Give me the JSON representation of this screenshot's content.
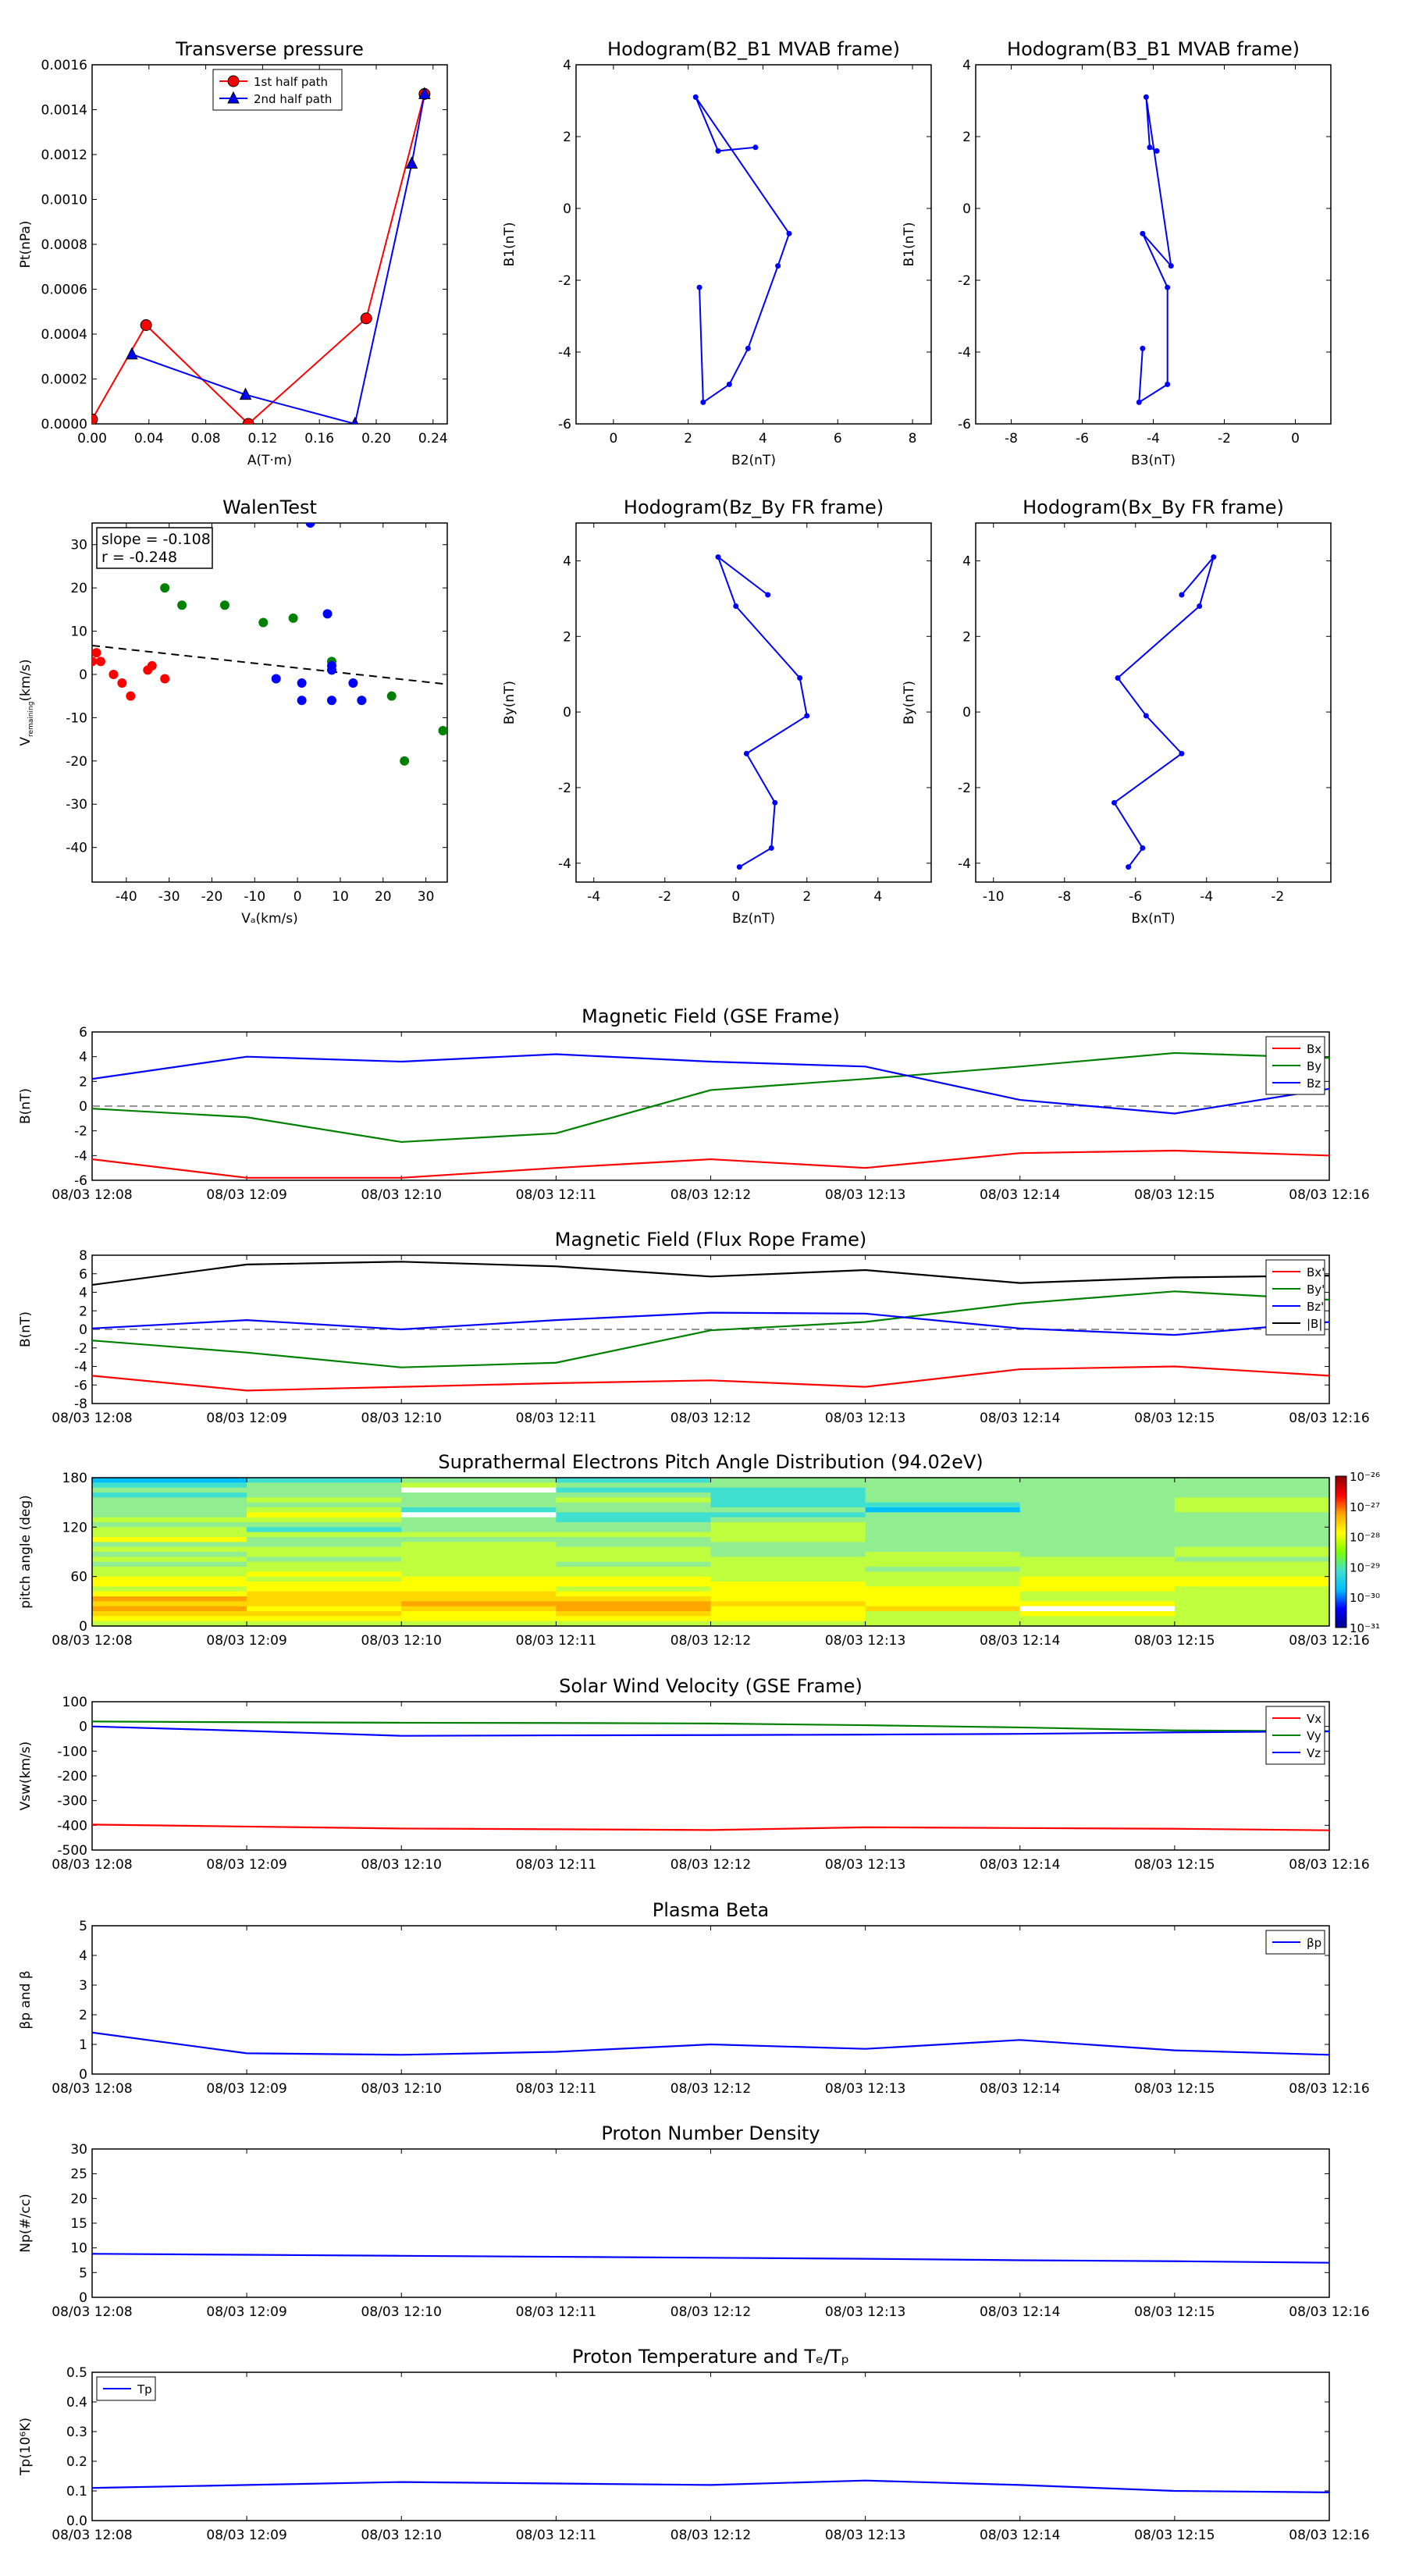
{
  "x_time_ticks": [
    "08/03 12:08",
    "08/03 12:09",
    "08/03 12:10",
    "08/03 12:11",
    "08/03 12:12",
    "08/03 12:13",
    "08/03 12:14",
    "08/03 12:15",
    "08/03 12:16"
  ],
  "colors": {
    "red": "#ff0000",
    "green": "#008000",
    "blue": "#0000ff",
    "black": "#000000",
    "dash": "#555555"
  },
  "chart_data": [
    {
      "type": "line",
      "title": "Transverse pressure",
      "xlabel": "A(T·m)",
      "ylabel": "Pt(nPa)",
      "xlim": [
        0,
        0.25
      ],
      "ylim": [
        0,
        0.0016
      ],
      "xticks": [
        0,
        0.04,
        0.08,
        0.12,
        0.16,
        0.2,
        0.24
      ],
      "xtick_labels": [
        "0.00",
        "0.04",
        "0.08",
        "0.12",
        "0.16",
        "0.20",
        "0.24"
      ],
      "yticks": [
        0,
        0.0002,
        0.0004,
        0.0006,
        0.0008,
        0.001,
        0.0012,
        0.0014,
        0.0016
      ],
      "ytick_labels": [
        "0.0000",
        "0.0002",
        "0.0004",
        "0.0006",
        "0.0008",
        "0.0010",
        "0.0012",
        "0.0014",
        "0.0016"
      ],
      "legend": "upper center",
      "series": [
        {
          "name": "1st half path",
          "color": "#ff0000",
          "marker": "circle",
          "x": [
            0.0,
            0.038,
            0.11,
            0.193,
            0.234
          ],
          "y": [
            2e-05,
            0.00044,
            0.0,
            0.00047,
            0.00147
          ]
        },
        {
          "name": "2nd half path",
          "color": "#0000ff",
          "marker": "triangle",
          "x": [
            0.234,
            0.225,
            0.185,
            0.108,
            0.028
          ],
          "y": [
            0.00147,
            0.00116,
            0.0,
            0.00013,
            0.00031
          ]
        }
      ]
    },
    {
      "type": "line",
      "title": "Hodogram(B2_B1 MVAB frame)",
      "xlabel": "B2(nT)",
      "ylabel": "B1(nT)",
      "xlim": [
        -1,
        8.5
      ],
      "ylim": [
        -6,
        4
      ],
      "xticks": [
        0,
        2,
        4,
        6,
        8
      ],
      "yticks": [
        -6,
        -4,
        -2,
        0,
        2,
        4
      ],
      "series": [
        {
          "color": "#0000ff",
          "marker": "dot",
          "x": [
            3.8,
            2.8,
            2.2,
            4.7,
            4.4,
            3.6,
            3.1,
            2.4,
            2.3
          ],
          "y": [
            1.7,
            1.6,
            3.1,
            -0.7,
            -1.6,
            -3.9,
            -4.9,
            -5.4,
            -2.2
          ]
        }
      ]
    },
    {
      "type": "line",
      "title": "Hodogram(B3_B1 MVAB frame)",
      "xlabel": "B3(nT)",
      "ylabel": "B1(nT)",
      "xlim": [
        -9,
        1
      ],
      "ylim": [
        -6,
        4
      ],
      "xticks": [
        -8,
        -6,
        -4,
        -2,
        0
      ],
      "yticks": [
        -6,
        -4,
        -2,
        0,
        2,
        4
      ],
      "series": [
        {
          "color": "#0000ff",
          "marker": "dot",
          "x": [
            -3.9,
            -4.1,
            -4.2,
            -3.5,
            -4.3,
            -3.6,
            -3.6,
            -4.4,
            -4.3
          ],
          "y": [
            1.6,
            1.7,
            3.1,
            -1.6,
            -0.7,
            -2.2,
            -4.9,
            -5.4,
            -3.9
          ]
        }
      ]
    },
    {
      "type": "scatter",
      "title": "WalenTest",
      "xlabel": "Vₐ(km/s)",
      "ylabel": "V",
      "ylabel_sub": "remaining",
      "ylabel_tail": "(km/s)",
      "xlim": [
        -48,
        35
      ],
      "ylim": [
        -48,
        35
      ],
      "xticks": [
        -40,
        -30,
        -20,
        -10,
        0,
        10,
        20,
        30
      ],
      "yticks": [
        -40,
        -30,
        -20,
        -10,
        0,
        10,
        20,
        30
      ],
      "annotation": [
        "slope = -0.108",
        "r = -0.248"
      ],
      "fit_line": {
        "slope": -0.108,
        "intercept": 1.5
      },
      "series": [
        {
          "color": "#ff0000",
          "x": [
            -48,
            -47,
            -46,
            -43,
            -41,
            -39,
            -35,
            -34,
            -31
          ],
          "y": [
            3,
            5,
            3,
            0,
            -2,
            -5,
            1,
            2,
            -1
          ]
        },
        {
          "color": "#008000",
          "x": [
            -31,
            -27,
            -17,
            -8,
            -1,
            8,
            22,
            25,
            34
          ],
          "y": [
            20,
            16,
            16,
            12,
            13,
            3,
            -5,
            -20,
            -13
          ]
        },
        {
          "color": "#0000ff",
          "x": [
            -5,
            1,
            1,
            7,
            8,
            8,
            8,
            13,
            15,
            3
          ],
          "y": [
            -1,
            -2,
            -6,
            14,
            2,
            1,
            -6,
            -2,
            -6,
            35
          ]
        }
      ]
    },
    {
      "type": "line",
      "title": "Hodogram(Bz_By FR frame)",
      "xlabel": "Bz(nT)",
      "ylabel": "By(nT)",
      "xlim": [
        -4.5,
        5.5
      ],
      "ylim": [
        -4.5,
        5
      ],
      "xticks": [
        -4,
        -2,
        0,
        2,
        4
      ],
      "yticks": [
        -4,
        -2,
        0,
        2,
        4
      ],
      "series": [
        {
          "color": "#0000ff",
          "marker": "dot",
          "x": [
            0.9,
            -0.5,
            0.0,
            1.8,
            2.0,
            0.3,
            1.1,
            1.0,
            0.1
          ],
          "y": [
            3.1,
            4.1,
            2.8,
            0.9,
            -0.1,
            -1.1,
            -2.4,
            -3.6,
            -4.1
          ]
        }
      ]
    },
    {
      "type": "line",
      "title": "Hodogram(Bx_By FR frame)",
      "xlabel": "Bx(nT)",
      "ylabel": "By(nT)",
      "xlim": [
        -10.5,
        -0.5
      ],
      "ylim": [
        -4.5,
        5
      ],
      "xticks": [
        -10,
        -8,
        -6,
        -4,
        -2
      ],
      "yticks": [
        -4,
        -2,
        0,
        2,
        4
      ],
      "series": [
        {
          "color": "#0000ff",
          "marker": "dot",
          "x": [
            -4.7,
            -3.8,
            -4.2,
            -6.5,
            -5.7,
            -4.7,
            -6.6,
            -5.8,
            -6.2
          ],
          "y": [
            3.1,
            4.1,
            2.8,
            0.9,
            -0.1,
            -1.1,
            -2.4,
            -3.6,
            -4.1
          ]
        }
      ]
    },
    {
      "type": "line",
      "title": "Magnetic Field (GSE Frame)",
      "ylabel": "B(nT)",
      "ylim": [
        -6,
        6
      ],
      "yticks": [
        -6,
        -4,
        -2,
        0,
        2,
        4,
        6
      ],
      "zero_line": true,
      "legend": "upper right",
      "series": [
        {
          "name": "Bx",
          "color": "#ff0000",
          "values": [
            -4.3,
            -5.8,
            -5.8,
            -5.0,
            -4.3,
            -5.0,
            -3.8,
            -3.6,
            -4.0
          ]
        },
        {
          "name": "By",
          "color": "#008000",
          "values": [
            -0.2,
            -0.9,
            -2.9,
            -2.2,
            1.3,
            2.2,
            3.2,
            4.3,
            3.9
          ]
        },
        {
          "name": "Bz",
          "color": "#0000ff",
          "values": [
            2.2,
            4.0,
            3.6,
            4.2,
            3.6,
            3.2,
            0.5,
            -0.6,
            1.4
          ]
        }
      ]
    },
    {
      "type": "line",
      "title": "Magnetic Field (Flux Rope Frame)",
      "ylabel": "B(nT)",
      "ylim": [
        -8,
        8
      ],
      "yticks": [
        -8,
        -6,
        -4,
        -2,
        0,
        2,
        4,
        6,
        8
      ],
      "zero_line": true,
      "legend": "upper right",
      "series": [
        {
          "name": "Bx'",
          "color": "#ff0000",
          "values": [
            -5.0,
            -6.6,
            -6.2,
            -5.8,
            -5.5,
            -6.2,
            -4.3,
            -4.0,
            -5.0
          ]
        },
        {
          "name": "By'",
          "color": "#008000",
          "values": [
            -1.2,
            -2.5,
            -4.1,
            -3.6,
            -0.1,
            0.8,
            2.8,
            4.1,
            3.2
          ]
        },
        {
          "name": "Bz'",
          "color": "#0000ff",
          "values": [
            0.1,
            1.0,
            0.0,
            1.0,
            1.8,
            1.7,
            0.1,
            -0.6,
            0.8
          ]
        },
        {
          "name": "|B|",
          "color": "#000000",
          "values": [
            4.8,
            7.0,
            7.3,
            6.8,
            5.7,
            6.4,
            5.0,
            5.6,
            5.8
          ]
        }
      ]
    },
    {
      "type": "heatmap",
      "title": "Suprathermal Electrons Pitch Angle Distribution (94.02eV)",
      "ylabel": "pitch angle (deg)",
      "ylim": [
        0,
        180
      ],
      "yticks": [
        0,
        60,
        120,
        180
      ],
      "colorbar_ticks": [
        "10⁻²⁶",
        "10⁻²⁷",
        "10⁻²⁸",
        "10⁻²⁹",
        "10⁻³⁰",
        "10⁻³¹"
      ],
      "columns": 8,
      "rows_per_column": 30,
      "levels_top_to_bottom": [
        [
          2,
          3,
          4,
          3,
          4,
          4,
          4,
          4,
          5,
          4,
          5,
          5,
          6,
          4,
          5,
          4,
          5,
          4,
          5,
          5,
          6,
          6,
          5,
          6,
          8,
          7,
          8,
          7,
          6,
          5
        ],
        [
          3,
          4,
          4,
          4,
          5,
          4,
          5,
          6,
          5,
          4,
          3,
          5,
          4,
          4,
          5,
          5,
          4,
          5,
          5,
          6,
          5,
          6,
          6,
          7,
          7,
          7,
          6,
          7,
          6,
          5
        ],
        [
          4,
          5,
          0,
          4,
          4,
          4,
          3,
          0,
          4,
          4,
          4,
          5,
          4,
          5,
          5,
          5,
          5,
          5,
          5,
          5,
          6,
          6,
          6,
          7,
          7,
          8,
          7,
          6,
          6,
          5
        ],
        [
          3,
          4,
          3,
          4,
          5,
          4,
          4,
          3,
          3,
          4,
          4,
          5,
          4,
          4,
          5,
          5,
          5,
          4,
          5,
          5,
          6,
          6,
          5,
          6,
          7,
          8,
          8,
          7,
          6,
          5
        ],
        [
          4,
          4,
          3,
          3,
          3,
          3,
          4,
          3,
          4,
          5,
          5,
          5,
          5,
          4,
          4,
          4,
          5,
          5,
          5,
          5,
          5,
          6,
          6,
          6,
          6,
          7,
          6,
          6,
          6,
          5
        ],
        [
          4,
          4,
          4,
          4,
          4,
          3,
          2,
          4,
          4,
          4,
          4,
          4,
          4,
          4,
          4,
          5,
          5,
          5,
          4,
          5,
          5,
          5,
          6,
          6,
          6,
          6,
          7,
          5,
          5,
          5
        ],
        [
          4,
          4,
          4,
          4,
          4,
          4,
          4,
          4,
          4,
          4,
          4,
          4,
          4,
          4,
          4,
          4,
          5,
          5,
          5,
          5,
          6,
          6,
          6,
          5,
          5,
          6,
          0,
          6,
          5,
          5
        ],
        [
          4,
          4,
          4,
          4,
          5,
          5,
          5,
          4,
          4,
          4,
          4,
          4,
          4,
          4,
          5,
          5,
          4,
          5,
          5,
          5,
          6,
          6,
          5,
          5,
          5,
          5,
          5,
          5,
          5,
          5
        ]
      ]
    },
    {
      "type": "line",
      "title": "Solar Wind Velocity (GSE Frame)",
      "ylabel": "Vsw(km/s)",
      "ylim": [
        -500,
        100
      ],
      "yticks": [
        -500,
        -400,
        -300,
        -200,
        -100,
        0,
        100
      ],
      "legend": "upper right",
      "series": [
        {
          "name": "Vx",
          "color": "#ff0000",
          "values": [
            -397,
            -405,
            -413,
            -416,
            -419,
            -408,
            -411,
            -414,
            -420
          ]
        },
        {
          "name": "Vy",
          "color": "#008000",
          "values": [
            20,
            17,
            15,
            14,
            12,
            5,
            -4,
            -16,
            -19
          ]
        },
        {
          "name": "Vz",
          "color": "#0000ff",
          "values": [
            0,
            -18,
            -38,
            -36,
            -35,
            -33,
            -30,
            -24,
            -20
          ]
        }
      ]
    },
    {
      "type": "line",
      "title": "Plasma Beta",
      "ylabel": "βp and β",
      "ylim": [
        0,
        5
      ],
      "yticks": [
        0,
        1,
        2,
        3,
        4,
        5
      ],
      "legend": "upper right",
      "series": [
        {
          "name": "βp",
          "color": "#0000ff",
          "values": [
            1.4,
            0.7,
            0.65,
            0.75,
            1.0,
            0.85,
            1.15,
            0.8,
            0.65
          ]
        }
      ]
    },
    {
      "type": "line",
      "title": "Proton Number Density",
      "ylabel": "Np(#/cc)",
      "ylim": [
        0,
        30
      ],
      "yticks": [
        0,
        5,
        10,
        15,
        20,
        25,
        30
      ],
      "series": [
        {
          "color": "#0000ff",
          "values": [
            8.8,
            8.6,
            8.4,
            8.2,
            8.0,
            7.8,
            7.5,
            7.3,
            7.0
          ]
        }
      ]
    },
    {
      "type": "line",
      "title": "Proton Temperature and Tₑ/Tₚ",
      "ylabel": "Tp(10⁶K)",
      "ylim": [
        0,
        0.5
      ],
      "yticks": [
        0,
        0.1,
        0.2,
        0.3,
        0.4,
        0.5
      ],
      "ytick_labels": [
        "0.0",
        "0.1",
        "0.2",
        "0.3",
        "0.4",
        "0.5"
      ],
      "legend": "upper left",
      "series": [
        {
          "name": "Tp",
          "color": "#0000ff",
          "values": [
            0.11,
            0.12,
            0.13,
            0.125,
            0.12,
            0.135,
            0.12,
            0.1,
            0.095
          ]
        }
      ]
    }
  ]
}
